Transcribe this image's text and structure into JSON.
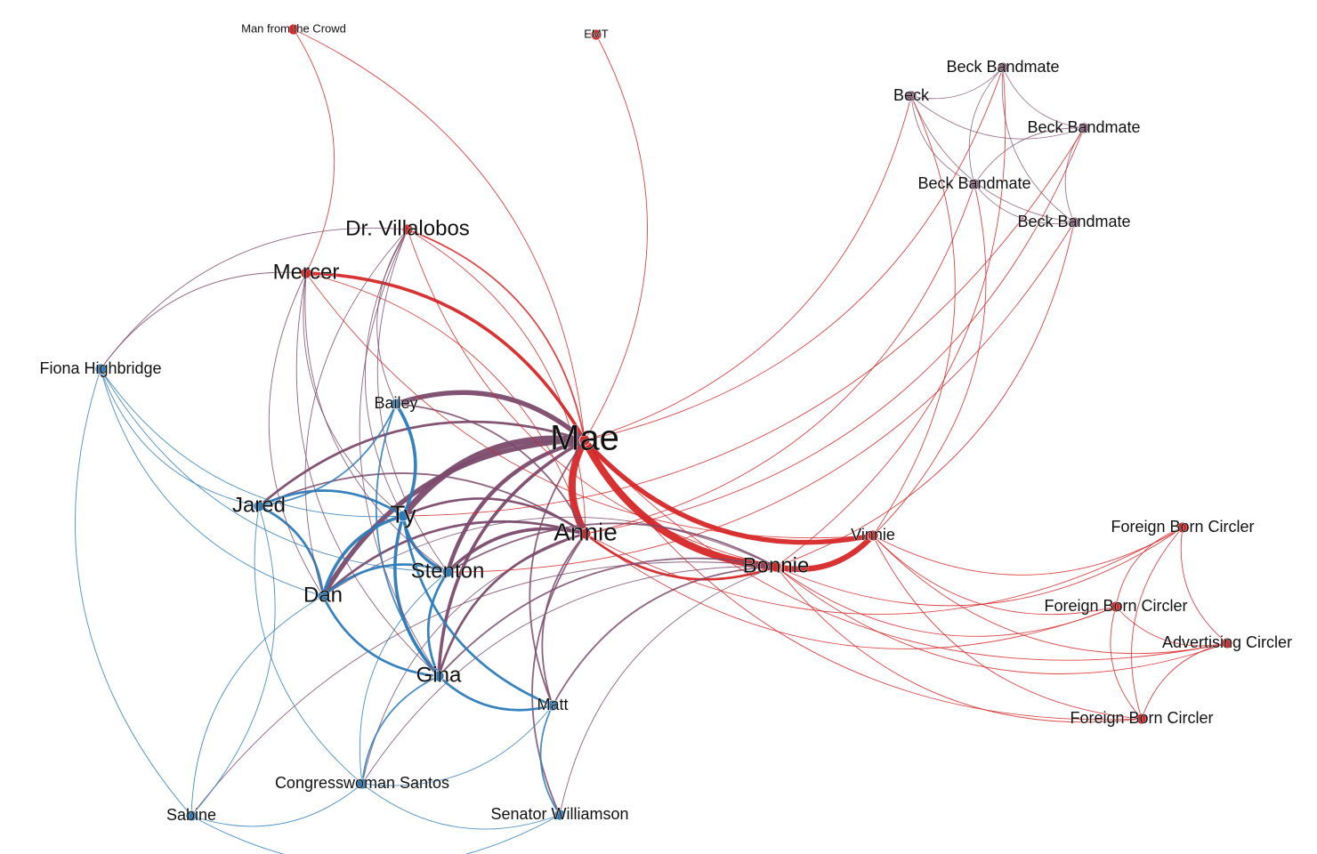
{
  "graph": {
    "title": "",
    "colors": {
      "red": "#d62728",
      "blue": "#2b7bba",
      "purple": "#7b4a6b",
      "lightpurple": "#8a5f7a"
    },
    "nodes": [
      {
        "id": "mae",
        "label": "Mae",
        "group": "red",
        "weight": 10
      },
      {
        "id": "annie",
        "label": "Annie",
        "group": "red",
        "weight": 7
      },
      {
        "id": "bonnie",
        "label": "Bonnie",
        "group": "red",
        "weight": 6
      },
      {
        "id": "vinnie",
        "label": "Vinnie",
        "group": "red",
        "weight": 4
      },
      {
        "id": "mercer",
        "label": "Mercer",
        "group": "red",
        "weight": 5
      },
      {
        "id": "villalobos",
        "label": "Dr. Villalobos",
        "group": "red",
        "weight": 5
      },
      {
        "id": "crowd",
        "label": "Man from the Crowd",
        "group": "red",
        "weight": 1
      },
      {
        "id": "emt",
        "label": "EMT",
        "group": "red",
        "weight": 1
      },
      {
        "id": "ty",
        "label": "Ty",
        "group": "blue",
        "weight": 7
      },
      {
        "id": "stenton",
        "label": "Stenton",
        "group": "blue",
        "weight": 6
      },
      {
        "id": "dan",
        "label": "Dan",
        "group": "blue",
        "weight": 6
      },
      {
        "id": "gina",
        "label": "Gina",
        "group": "blue",
        "weight": 6
      },
      {
        "id": "jared",
        "label": "Jared",
        "group": "blue",
        "weight": 5
      },
      {
        "id": "bailey",
        "label": "Bailey",
        "group": "blue",
        "weight": 4
      },
      {
        "id": "matt",
        "label": "Matt",
        "group": "blue",
        "weight": 4
      },
      {
        "id": "fiona",
        "label": "Fiona Highbridge",
        "group": "blue",
        "weight": 4
      },
      {
        "id": "santos",
        "label": "Congresswoman Santos",
        "group": "blue",
        "weight": 4
      },
      {
        "id": "sabine",
        "label": "Sabine",
        "group": "blue",
        "weight": 4
      },
      {
        "id": "williamson",
        "label": "Senator Williamson",
        "group": "blue",
        "weight": 4
      },
      {
        "id": "beck",
        "label": "Beck",
        "group": "lightpurple",
        "weight": 3
      },
      {
        "id": "bb1",
        "label": "Beck Bandmate",
        "group": "lightpurple",
        "weight": 3
      },
      {
        "id": "bb2",
        "label": "Beck Bandmate",
        "group": "lightpurple",
        "weight": 3
      },
      {
        "id": "bb3",
        "label": "Beck Bandmate",
        "group": "lightpurple",
        "weight": 3
      },
      {
        "id": "bb4",
        "label": "Beck Bandmate",
        "group": "lightpurple",
        "weight": 3
      },
      {
        "id": "fbc1",
        "label": "Foreign Born Circler",
        "group": "red",
        "weight": 3
      },
      {
        "id": "fbc2",
        "label": "Foreign Born Circler",
        "group": "red",
        "weight": 3
      },
      {
        "id": "fbc3",
        "label": "Foreign Born Circler",
        "group": "red",
        "weight": 3
      },
      {
        "id": "adc",
        "label": "Advertising Circler",
        "group": "red",
        "weight": 3
      }
    ],
    "edges": [
      [
        "mae",
        "annie",
        9,
        "red"
      ],
      [
        "mae",
        "bonnie",
        9,
        "red"
      ],
      [
        "mae",
        "vinnie",
        6,
        "red"
      ],
      [
        "annie",
        "bonnie",
        3,
        "red"
      ],
      [
        "bonnie",
        "vinnie",
        7,
        "red"
      ],
      [
        "mae",
        "mercer",
        4,
        "red"
      ],
      [
        "mae",
        "villalobos",
        2,
        "red"
      ],
      [
        "mae",
        "crowd",
        1,
        "red"
      ],
      [
        "mae",
        "emt",
        1,
        "red"
      ],
      [
        "mercer",
        "crowd",
        1,
        "red"
      ],
      [
        "annie",
        "villalobos",
        1,
        "red"
      ],
      [
        "annie",
        "mercer",
        1,
        "red"
      ],
      [
        "mae",
        "ty",
        8,
        "purple"
      ],
      [
        "mae",
        "stenton",
        5,
        "purple"
      ],
      [
        "mae",
        "dan",
        6,
        "purple"
      ],
      [
        "mae",
        "bailey",
        6,
        "purple"
      ],
      [
        "mae",
        "jared",
        3,
        "purple"
      ],
      [
        "mae",
        "gina",
        4,
        "purple"
      ],
      [
        "mae",
        "matt",
        2,
        "purple"
      ],
      [
        "annie",
        "stenton",
        4,
        "purple"
      ],
      [
        "annie",
        "ty",
        3,
        "purple"
      ],
      [
        "annie",
        "dan",
        3,
        "purple"
      ],
      [
        "annie",
        "gina",
        3,
        "purple"
      ],
      [
        "annie",
        "bailey",
        2,
        "purple"
      ],
      [
        "annie",
        "jared",
        2,
        "purple"
      ],
      [
        "annie",
        "matt",
        2,
        "purple"
      ],
      [
        "annie",
        "williamson",
        2,
        "purple"
      ],
      [
        "annie",
        "santos",
        1,
        "purple"
      ],
      [
        "bonnie",
        "gina",
        2,
        "purple"
      ],
      [
        "bonnie",
        "matt",
        2,
        "purple"
      ],
      [
        "bonnie",
        "stenton",
        2,
        "purple"
      ],
      [
        "bonnie",
        "sabine",
        1,
        "purple"
      ],
      [
        "bonnie",
        "santos",
        1,
        "purple"
      ],
      [
        "bonnie",
        "williamson",
        1,
        "purple"
      ],
      [
        "bonnie",
        "dan",
        1,
        "purple"
      ],
      [
        "ty",
        "stenton",
        4,
        "blue"
      ],
      [
        "ty",
        "dan",
        4,
        "blue"
      ],
      [
        "ty",
        "gina",
        4,
        "blue"
      ],
      [
        "ty",
        "jared",
        3,
        "blue"
      ],
      [
        "ty",
        "bailey",
        4,
        "blue"
      ],
      [
        "ty",
        "matt",
        3,
        "blue"
      ],
      [
        "stenton",
        "dan",
        3,
        "blue"
      ],
      [
        "stenton",
        "gina",
        3,
        "blue"
      ],
      [
        "dan",
        "gina",
        3,
        "blue"
      ],
      [
        "dan",
        "jared",
        3,
        "blue"
      ],
      [
        "gina",
        "matt",
        3,
        "blue"
      ],
      [
        "jared",
        "bailey",
        2,
        "blue"
      ],
      [
        "gina",
        "santos",
        2,
        "blue"
      ],
      [
        "matt",
        "williamson",
        2,
        "blue"
      ],
      [
        "dan",
        "sabine",
        1,
        "blue"
      ],
      [
        "fiona",
        "jared",
        1,
        "blue"
      ],
      [
        "fiona",
        "dan",
        1,
        "blue"
      ],
      [
        "fiona",
        "ty",
        1,
        "blue"
      ],
      [
        "fiona",
        "sabine",
        1,
        "blue"
      ],
      [
        "fiona",
        "stenton",
        1,
        "blue"
      ],
      [
        "sabine",
        "santos",
        1,
        "blue"
      ],
      [
        "sabine",
        "williamson",
        1,
        "blue"
      ],
      [
        "santos",
        "matt",
        1,
        "blue"
      ],
      [
        "santos",
        "williamson",
        1,
        "blue"
      ],
      [
        "jared",
        "santos",
        1,
        "blue"
      ],
      [
        "stenton",
        "santos",
        1,
        "blue"
      ],
      [
        "bailey",
        "gina",
        2,
        "blue"
      ],
      [
        "sabine",
        "jared",
        1,
        "blue"
      ],
      [
        "mercer",
        "ty",
        1,
        "purple"
      ],
      [
        "mercer",
        "dan",
        1,
        "purple"
      ],
      [
        "mercer",
        "fiona",
        1,
        "purple"
      ],
      [
        "mercer",
        "stenton",
        1,
        "purple"
      ],
      [
        "villalobos",
        "fiona",
        1,
        "purple"
      ],
      [
        "villalobos",
        "ty",
        1,
        "purple"
      ],
      [
        "villalobos",
        "dan",
        1,
        "purple"
      ],
      [
        "villalobos",
        "gina",
        1,
        "purple"
      ],
      [
        "villalobos",
        "stenton",
        1,
        "purple"
      ],
      [
        "villalobos",
        "bailey",
        1,
        "purple"
      ],
      [
        "mercer",
        "gina",
        1,
        "purple"
      ],
      [
        "beck",
        "bb1",
        1,
        "lightpurple"
      ],
      [
        "beck",
        "bb2",
        1,
        "lightpurple"
      ],
      [
        "beck",
        "bb3",
        1,
        "lightpurple"
      ],
      [
        "beck",
        "bb4",
        1,
        "lightpurple"
      ],
      [
        "bb1",
        "bb2",
        1,
        "lightpurple"
      ],
      [
        "bb1",
        "bb3",
        1,
        "lightpurple"
      ],
      [
        "bb1",
        "bb4",
        1,
        "lightpurple"
      ],
      [
        "bb2",
        "bb3",
        1,
        "lightpurple"
      ],
      [
        "bb2",
        "bb4",
        1,
        "lightpurple"
      ],
      [
        "bb3",
        "bb4",
        1,
        "lightpurple"
      ],
      [
        "mae",
        "beck",
        1,
        "red"
      ],
      [
        "mae",
        "bb1",
        1,
        "red"
      ],
      [
        "annie",
        "bb2",
        1,
        "red"
      ],
      [
        "annie",
        "bb3",
        1,
        "red"
      ],
      [
        "bonnie",
        "bb1",
        1,
        "red"
      ],
      [
        "bonnie",
        "bb4",
        1,
        "red"
      ],
      [
        "vinnie",
        "beck",
        1,
        "red"
      ],
      [
        "vinnie",
        "bb3",
        1,
        "red"
      ],
      [
        "stenton",
        "bb4",
        1,
        "red"
      ],
      [
        "ty",
        "bb2",
        1,
        "red"
      ],
      [
        "vinnie",
        "fbc1",
        1,
        "red"
      ],
      [
        "vinnie",
        "fbc2",
        1,
        "red"
      ],
      [
        "vinnie",
        "adc",
        1,
        "red"
      ],
      [
        "vinnie",
        "fbc3",
        1,
        "red"
      ],
      [
        "bonnie",
        "fbc1",
        1,
        "red"
      ],
      [
        "bonnie",
        "fbc2",
        1,
        "red"
      ],
      [
        "bonnie",
        "adc",
        1,
        "red"
      ],
      [
        "bonnie",
        "fbc3",
        1,
        "red"
      ],
      [
        "annie",
        "fbc1",
        1,
        "red"
      ],
      [
        "annie",
        "fbc2",
        1,
        "red"
      ],
      [
        "mae",
        "adc",
        1,
        "red"
      ],
      [
        "mae",
        "fbc3",
        1,
        "red"
      ],
      [
        "fbc1",
        "fbc2",
        1,
        "red"
      ],
      [
        "fbc1",
        "adc",
        1,
        "red"
      ],
      [
        "fbc1",
        "fbc3",
        1,
        "red"
      ],
      [
        "fbc2",
        "adc",
        1,
        "red"
      ],
      [
        "fbc2",
        "fbc3",
        1,
        "red"
      ],
      [
        "adc",
        "fbc3",
        1,
        "red"
      ],
      [
        "mercer",
        "vinnie",
        1,
        "red"
      ],
      [
        "villalobos",
        "bonnie",
        1,
        "red"
      ]
    ]
  }
}
